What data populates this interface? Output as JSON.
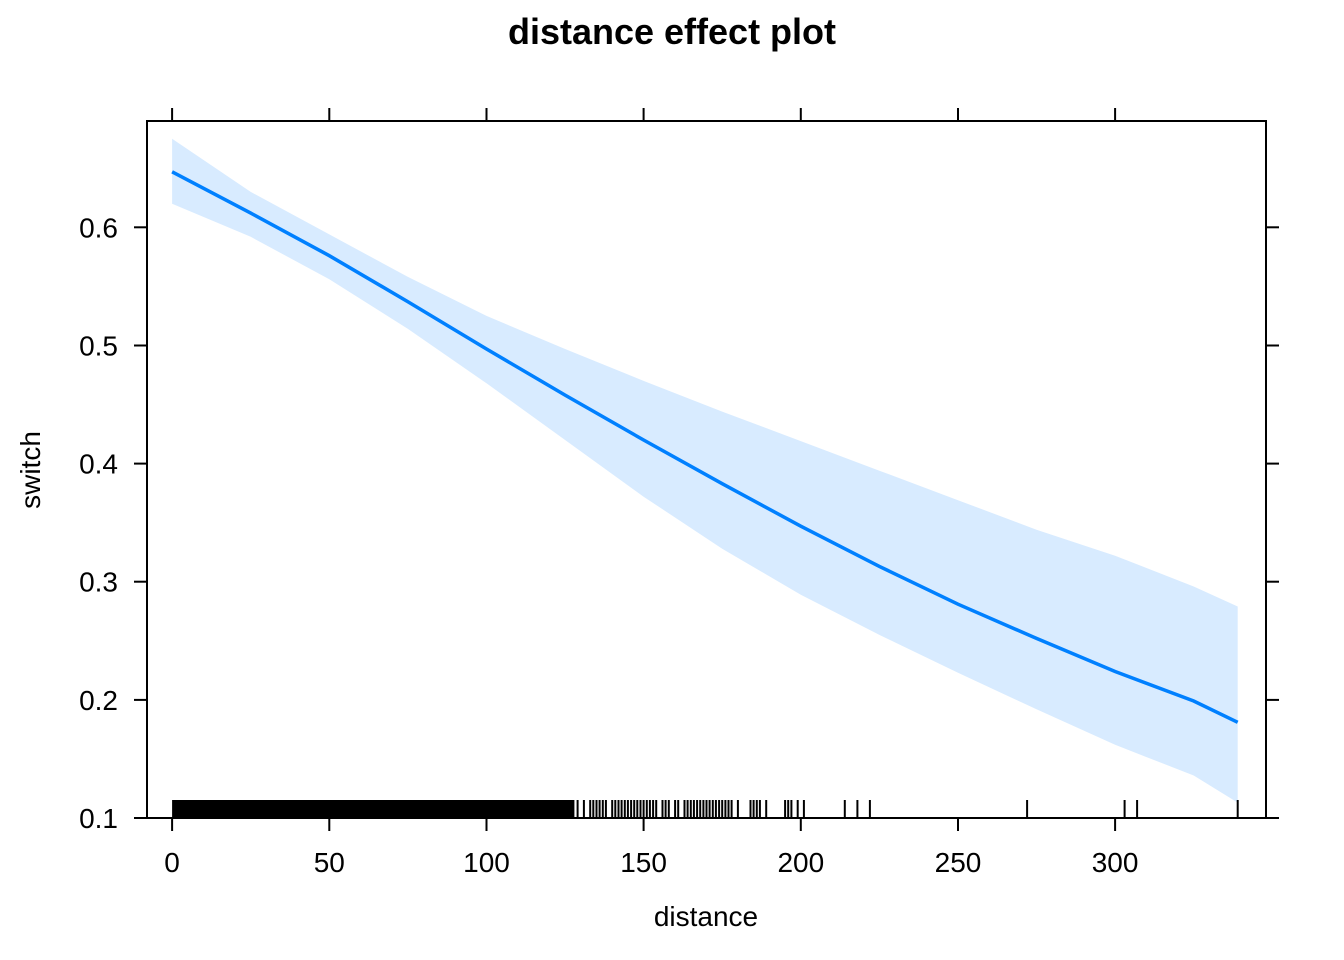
{
  "chart_data": {
    "type": "line",
    "title": "distance effect plot",
    "xlabel": "distance",
    "ylabel": "switch",
    "xlim": [
      -8,
      348
    ],
    "ylim": [
      0.1,
      0.69
    ],
    "x_ticks": [
      0,
      50,
      100,
      150,
      200,
      250,
      300
    ],
    "y_ticks": [
      0.1,
      0.2,
      0.3,
      0.4,
      0.5,
      0.6
    ],
    "colors": {
      "line": "#0080ff",
      "band": "#d8ebff",
      "rug": "#000000"
    },
    "series": [
      {
        "x": [
          0,
          25,
          50,
          75,
          100,
          125,
          150,
          175,
          200,
          225,
          250,
          275,
          300,
          325,
          339
        ],
        "y": [
          0.647,
          0.612,
          0.576,
          0.537,
          0.497,
          0.458,
          0.42,
          0.383,
          0.347,
          0.313,
          0.281,
          0.252,
          0.224,
          0.199,
          0.181
        ],
        "lower": [
          0.62,
          0.592,
          0.556,
          0.514,
          0.468,
          0.42,
          0.372,
          0.328,
          0.289,
          0.255,
          0.223,
          0.192,
          0.162,
          0.136,
          0.113
        ],
        "upper": [
          0.675,
          0.63,
          0.594,
          0.558,
          0.525,
          0.497,
          0.47,
          0.444,
          0.419,
          0.394,
          0.369,
          0.344,
          0.322,
          0.296,
          0.279
        ]
      }
    ],
    "rug": {
      "dense_from": 0,
      "dense_to": 128,
      "x": [
        129,
        131,
        133,
        134,
        135,
        136,
        137,
        138,
        140,
        141,
        142,
        143,
        144,
        145,
        146,
        147,
        148,
        149,
        150,
        151,
        152,
        153,
        154,
        156,
        157,
        158,
        160,
        161,
        163,
        164,
        165,
        166,
        167,
        168,
        169,
        170,
        171,
        172,
        173,
        174,
        175,
        176,
        177,
        178,
        180,
        184,
        185,
        186,
        187,
        189,
        195,
        196,
        197,
        199,
        201,
        214,
        218,
        222,
        272,
        303,
        307,
        339
      ]
    }
  }
}
